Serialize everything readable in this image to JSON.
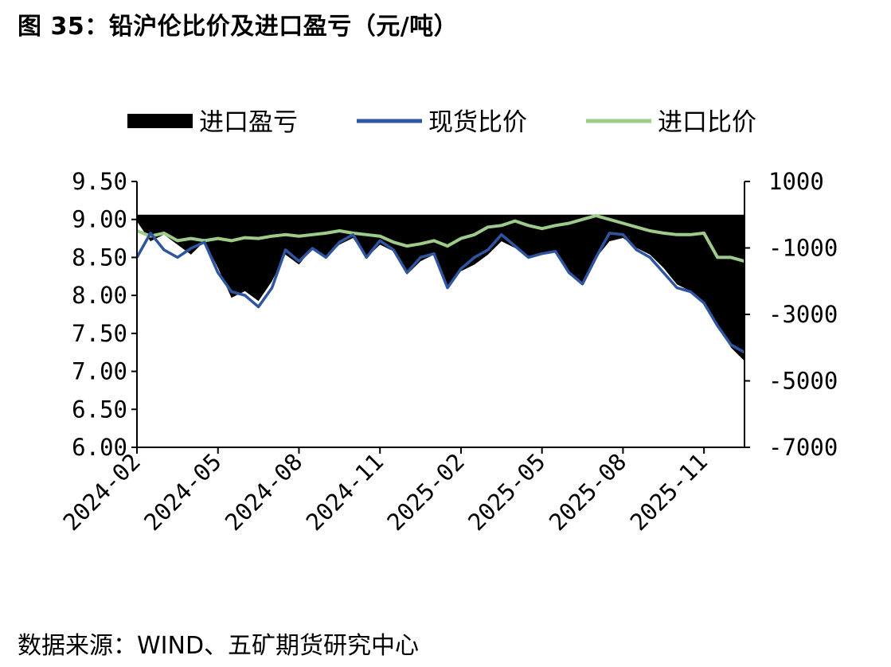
{
  "title": "图 35：铅沪伦比价及进口盈亏（元/吨）",
  "source": "数据来源：WIND、五矿期货研究中心",
  "chart_data": {
    "type": "line",
    "legend": [
      {
        "key": "loss",
        "label": "进口盈亏",
        "color": "#000000",
        "kind": "area"
      },
      {
        "key": "spot",
        "label": "现货比价",
        "color": "#2f55a0",
        "kind": "line"
      },
      {
        "key": "import",
        "label": "进口比价",
        "color": "#9dcc8a",
        "kind": "line"
      }
    ],
    "legend_position": "top",
    "left_axis": {
      "ylim": [
        6.0,
        9.5
      ],
      "ticks": [
        "6.00",
        "6.50",
        "7.00",
        "7.50",
        "8.00",
        "8.50",
        "9.00",
        "9.50"
      ]
    },
    "right_axis": {
      "ylim": [
        -7000,
        1000
      ],
      "ticks": [
        "-7000",
        "-5000",
        "-3000",
        "-1000",
        "1000"
      ]
    },
    "x_axis": {
      "ticks": [
        "2024-02",
        "2024-05",
        "2024-08",
        "2024-11",
        "2025-02",
        "2025-05",
        "2025-08",
        "2025-11"
      ]
    },
    "x_months": [
      0,
      0.5,
      1,
      1.5,
      2,
      2.5,
      3,
      3.5,
      4,
      4.5,
      5,
      5.5,
      6,
      6.5,
      7,
      7.5,
      8,
      8.5,
      9,
      9.5,
      10,
      10.5,
      11,
      11.5,
      12,
      12.5,
      13,
      13.5,
      14,
      14.5,
      15,
      15.5,
      16,
      16.5,
      17,
      17.5,
      18,
      18.5,
      19,
      19.5,
      20,
      20.5,
      21,
      21.5,
      22,
      22.5
    ],
    "series": {
      "spot": [
        8.5,
        8.82,
        8.6,
        8.5,
        8.62,
        8.7,
        8.3,
        8.05,
        8.0,
        7.85,
        8.1,
        8.6,
        8.45,
        8.62,
        8.5,
        8.7,
        8.8,
        8.5,
        8.72,
        8.6,
        8.3,
        8.5,
        8.55,
        8.1,
        8.35,
        8.5,
        8.6,
        8.8,
        8.65,
        8.5,
        8.55,
        8.58,
        8.3,
        8.15,
        8.5,
        8.82,
        8.8,
        8.6,
        8.5,
        8.3,
        8.1,
        8.05,
        7.9,
        7.6,
        7.35,
        7.25
      ],
      "import": [
        8.85,
        8.78,
        8.82,
        8.72,
        8.75,
        8.72,
        8.75,
        8.72,
        8.76,
        8.75,
        8.78,
        8.8,
        8.78,
        8.8,
        8.82,
        8.85,
        8.82,
        8.8,
        8.78,
        8.7,
        8.65,
        8.68,
        8.72,
        8.65,
        8.75,
        8.8,
        8.9,
        8.92,
        8.98,
        8.92,
        8.88,
        8.92,
        8.95,
        9.0,
        9.05,
        9.0,
        8.95,
        8.9,
        8.85,
        8.82,
        8.8,
        8.8,
        8.82,
        8.5,
        8.5,
        8.45
      ],
      "loss": [
        -200,
        -800,
        -600,
        -900,
        -1200,
        -800,
        -1600,
        -2500,
        -2300,
        -2600,
        -2000,
        -1200,
        -1500,
        -1000,
        -1300,
        -900,
        -700,
        -1300,
        -900,
        -1100,
        -1800,
        -1400,
        -1200,
        -2200,
        -1700,
        -1500,
        -1200,
        -800,
        -1000,
        -1300,
        -1200,
        -1100,
        -1700,
        -2100,
        -1300,
        -800,
        -700,
        -1000,
        -1200,
        -1600,
        -2100,
        -2300,
        -2700,
        -3300,
        -4000,
        -4400
      ]
    }
  }
}
